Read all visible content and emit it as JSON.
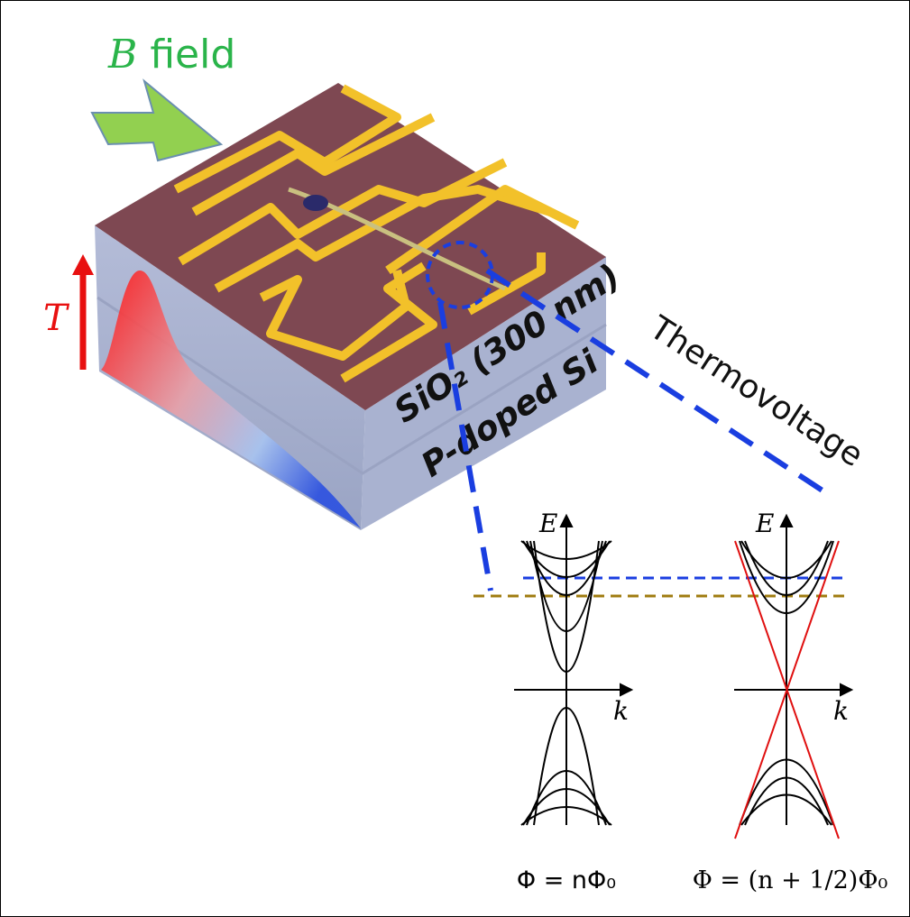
{
  "field_label": {
    "symbol": "B",
    "text": "field"
  },
  "temperature_label": "T",
  "layers": {
    "oxide": "SiO₂ (300 nm)",
    "substrate": "P-doped Si"
  },
  "measurement": "Thermovoltage",
  "band_diagrams": [
    {
      "energy_axis": "E",
      "momentum_axis": "k",
      "caption": "Φ = nΦ₀"
    },
    {
      "energy_axis": "E",
      "momentum_axis": "k",
      "caption": "Φ = (n + 1/2)Φ₀"
    }
  ]
}
